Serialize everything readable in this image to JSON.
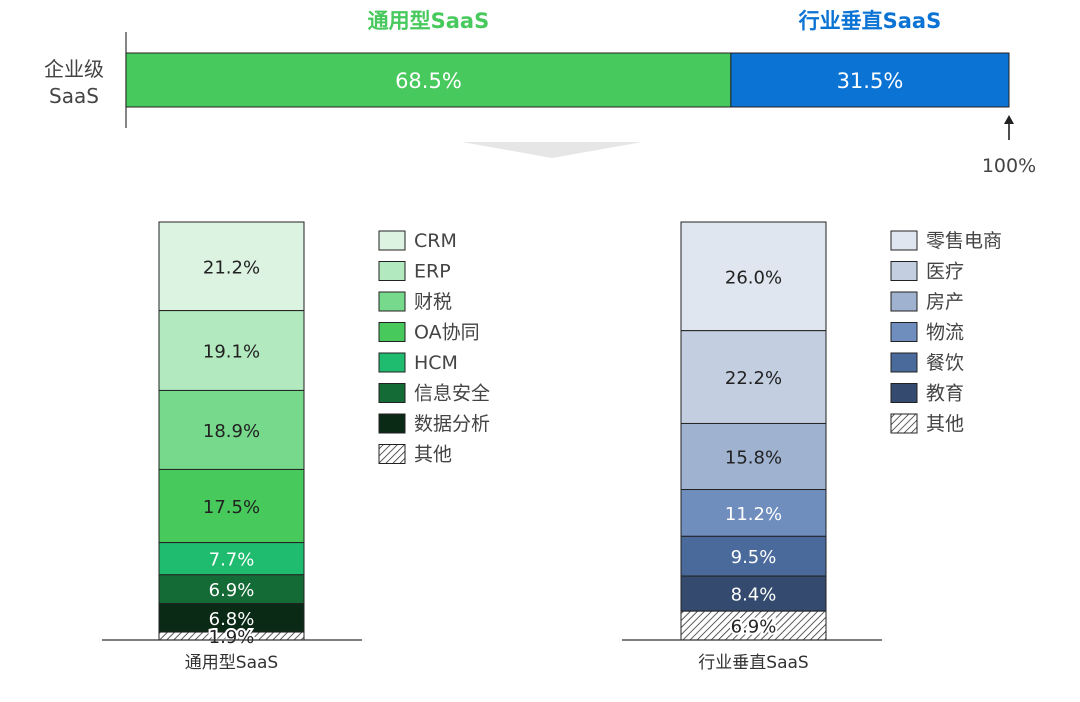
{
  "chart_data": [
    {
      "type": "bar",
      "orientation": "horizontal",
      "stacked": true,
      "y_label": "企业级SaaS",
      "y_label_lines": [
        "企业级",
        "SaaS"
      ],
      "series": [
        {
          "name": "通用型SaaS",
          "value": 68.5,
          "label": "68.5%",
          "color": "#47c95d"
        },
        {
          "name": "行业垂直SaaS",
          "value": 31.5,
          "label": "31.5%",
          "color": "#0b73d4"
        }
      ],
      "end_marker": "100%",
      "xlim": [
        0,
        100
      ]
    },
    {
      "type": "bar",
      "stacked": true,
      "category": "通用型SaaS",
      "series": [
        {
          "name": "CRM",
          "value": 21.2,
          "label": "21.2%",
          "color": "#dcf3e1",
          "text_color": "#222222"
        },
        {
          "name": "ERP",
          "value": 19.1,
          "label": "19.1%",
          "color": "#b3e9bf",
          "text_color": "#222222"
        },
        {
          "name": "财税",
          "value": 18.9,
          "label": "18.9%",
          "color": "#77d98c",
          "text_color": "#222222"
        },
        {
          "name": "OA协同",
          "value": 17.5,
          "label": "17.5%",
          "color": "#48c95c",
          "text_color": "#222222"
        },
        {
          "name": "HCM",
          "value": 7.7,
          "label": "7.7%",
          "color": "#1fbc70",
          "text_color": "#ffffff"
        },
        {
          "name": "信息安全",
          "value": 6.9,
          "label": "6.9%",
          "color": "#146b36",
          "text_color": "#ffffff"
        },
        {
          "name": "数据分析",
          "value": 6.8,
          "label": "6.8%",
          "color": "#0b2a15",
          "text_color": "#ffffff"
        },
        {
          "name": "其他",
          "value": 1.9,
          "label": "1.9%",
          "color": "hatch",
          "text_color": "#222222"
        }
      ]
    },
    {
      "type": "bar",
      "stacked": true,
      "category": "行业垂直SaaS",
      "series": [
        {
          "name": "零售电商",
          "value": 26.0,
          "label": "26.0%",
          "color": "#e0e6f0",
          "text_color": "#222222"
        },
        {
          "name": "医疗",
          "value": 22.2,
          "label": "22.2%",
          "color": "#c3cfe1",
          "text_color": "#222222"
        },
        {
          "name": "房产",
          "value": 15.8,
          "label": "15.8%",
          "color": "#9fb2d0",
          "text_color": "#222222"
        },
        {
          "name": "物流",
          "value": 11.2,
          "label": "11.2%",
          "color": "#6f8ebd",
          "text_color": "#ffffff"
        },
        {
          "name": "餐饮",
          "value": 9.5,
          "label": "9.5%",
          "color": "#4a6a9c",
          "text_color": "#ffffff"
        },
        {
          "name": "教育",
          "value": 8.4,
          "label": "8.4%",
          "color": "#344a6e",
          "text_color": "#ffffff"
        },
        {
          "name": "其他",
          "value": 6.9,
          "label": "6.9%",
          "color": "hatch",
          "text_color": "#222222"
        }
      ]
    }
  ]
}
